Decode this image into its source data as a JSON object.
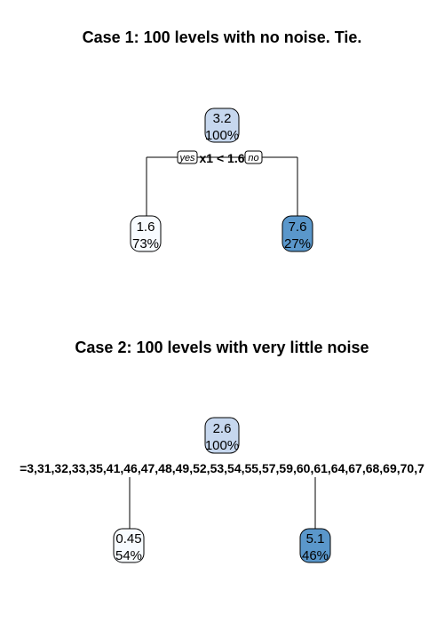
{
  "colors": {
    "root_fill": "#c6d7ee",
    "low_fill": "#f7fbff",
    "high_fill": "#5a97cb"
  },
  "case1": {
    "title": "Case 1: 100 levels with no noise. Tie.",
    "split_label": "x1 < 1.6",
    "yes_label": "yes",
    "no_label": "no",
    "root": {
      "value": "3.2",
      "percent": "100%"
    },
    "left": {
      "value": "1.6",
      "percent": "73%"
    },
    "right": {
      "value": "7.6",
      "percent": "27%"
    }
  },
  "case2": {
    "title": "Case 2: 100 levels with very little noise",
    "split_label": "=3,31,32,33,35,41,46,47,48,49,52,53,54,55,57,59,60,61,64,67,68,69,70,7",
    "root": {
      "value": "2.6",
      "percent": "100%"
    },
    "left": {
      "value": "0.45",
      "percent": "54%"
    },
    "right": {
      "value": "5.1",
      "percent": "46%"
    }
  }
}
